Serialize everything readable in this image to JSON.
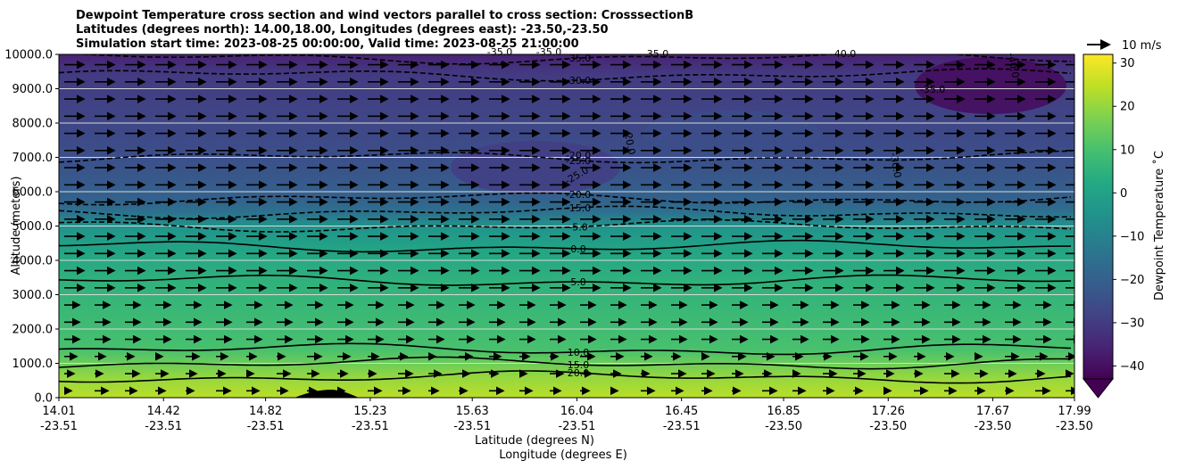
{
  "chart_data": {
    "type": "heatmap",
    "title_lines": [
      "Dewpoint Temperature cross section and wind vectors parallel to cross section: CrosssectionB",
      "Latitudes (degrees north): 14.00,18.00, Longitudes (degrees east): -23.50,-23.50",
      "Simulation start time: 2023-08-25 00:00:00, Valid time: 2023-08-25 21:00:00"
    ],
    "ylabel": "Altitude (meters)",
    "xlabel_lines": [
      "Latitude (degrees N)",
      "Longitude (degrees E)"
    ],
    "ylim": [
      0,
      10000
    ],
    "y_ticks": [
      "0.0",
      "1000.0",
      "2000.0",
      "3000.0",
      "4000.0",
      "5000.0",
      "6000.0",
      "7000.0",
      "8000.0",
      "9000.0",
      "10000.0"
    ],
    "x_ticks": [
      {
        "lat": "14.01",
        "lon": "-23.51"
      },
      {
        "lat": "14.42",
        "lon": "-23.51"
      },
      {
        "lat": "14.82",
        "lon": "-23.51"
      },
      {
        "lat": "15.23",
        "lon": "-23.51"
      },
      {
        "lat": "15.63",
        "lon": "-23.51"
      },
      {
        "lat": "16.04",
        "lon": "-23.51"
      },
      {
        "lat": "16.45",
        "lon": "-23.51"
      },
      {
        "lat": "16.85",
        "lon": "-23.50"
      },
      {
        "lat": "17.26",
        "lon": "-23.50"
      },
      {
        "lat": "17.67",
        "lon": "-23.50"
      },
      {
        "lat": "17.99",
        "lon": "-23.50"
      }
    ],
    "colorbar": {
      "label": "Dewpoint Temperature ˚C",
      "ticks": [
        "30",
        "20",
        "10",
        "0",
        "−10",
        "−20",
        "−30",
        "−40"
      ],
      "range": [
        -43,
        32
      ],
      "colormap": "viridis"
    },
    "wind_key": "10 m/s",
    "grid": "horizontal",
    "contours": [
      {
        "value": 20.0,
        "style": "solid",
        "altitude_m": 600,
        "label": "20.0"
      },
      {
        "value": 15.0,
        "style": "solid",
        "altitude_m": 1000,
        "label": "15.0"
      },
      {
        "value": 10.0,
        "style": "solid",
        "altitude_m": 1400,
        "label": "10.0"
      },
      {
        "value": 5.0,
        "style": "solid",
        "altitude_m": 3400,
        "label": "5.0"
      },
      {
        "value": 0.0,
        "style": "solid",
        "altitude_m": 4400,
        "label": "0.0"
      },
      {
        "value": -5.0,
        "style": "dashed",
        "altitude_m": 5000,
        "label": "-5.0"
      },
      {
        "value": -15.0,
        "style": "dashed",
        "altitude_m": 5400,
        "label": "-15.0"
      },
      {
        "value": -20.0,
        "style": "dashed",
        "altitude_m": 5800,
        "label": "-20.0"
      },
      {
        "value": -25.0,
        "style": "dashed",
        "altitude_m": 7000,
        "label": "-25.0"
      },
      {
        "value": -30.0,
        "style": "dashed",
        "altitude_m": 9400,
        "label": "-30.0"
      },
      {
        "value": -35.0,
        "style": "dashed",
        "altitude_m": 9900,
        "label": "-35.0"
      }
    ],
    "extra_contour_labels": [
      "-25.0",
      "-20.0",
      "-20.0",
      "-30.0",
      "-35.0",
      "-35.0",
      "-35.0",
      "-35.0",
      "-40.0",
      "-40.0"
    ]
  }
}
